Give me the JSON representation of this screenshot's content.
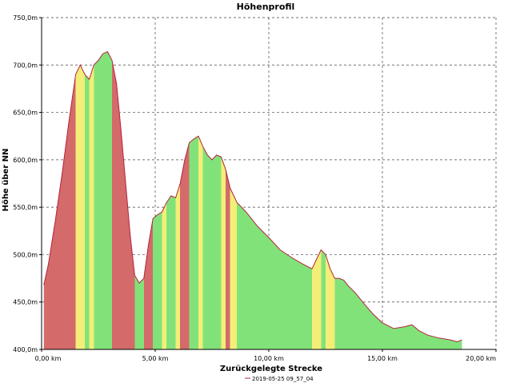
{
  "chart_data": {
    "type": "area",
    "title": "Höhenprofil",
    "xlabel": "Zurückgelegte Strecke",
    "ylabel": "Höhe über NN",
    "legend": {
      "label": "2019-05-25 09_57_04",
      "placement": "bottom-center"
    },
    "xlim": [
      0,
      20
    ],
    "ylim": [
      400,
      750
    ],
    "grid": true,
    "x_ticks": [
      0,
      5,
      10,
      15,
      20
    ],
    "x_tick_labels": [
      "0,00 km",
      "5,00 km",
      "10,00 km",
      "15,00 km",
      "20,00 km"
    ],
    "y_ticks": [
      400,
      450,
      500,
      550,
      600,
      650,
      700,
      750
    ],
    "y_tick_labels": [
      "400,0m",
      "450,0m",
      "500,0m",
      "550,0m",
      "600,0m",
      "650,0m",
      "700,0m",
      "750,0m"
    ],
    "series": [
      {
        "x": [
          0.1,
          0.3,
          0.6,
          0.9,
          1.2,
          1.5,
          1.7,
          1.9,
          2.1,
          2.3,
          2.5,
          2.7,
          2.9,
          3.1,
          3.3,
          3.5,
          3.7,
          3.9,
          4.1,
          4.3,
          4.5,
          4.7,
          4.9,
          5.1,
          5.3,
          5.5,
          5.7,
          5.9,
          6.1,
          6.3,
          6.5,
          6.7,
          6.9,
          7.1,
          7.3,
          7.5,
          7.7,
          7.9,
          8.1,
          8.3,
          8.6,
          9.0,
          9.5,
          10.0,
          10.5,
          11.0,
          11.5,
          11.9,
          12.1,
          12.3,
          12.5,
          12.7,
          12.9,
          13.1,
          13.3,
          13.5,
          13.8,
          14.2,
          14.6,
          15.0,
          15.5,
          16.0,
          16.3,
          16.6,
          17.0,
          17.5,
          18.0,
          18.3,
          18.5
        ],
        "y": [
          468,
          490,
          535,
          585,
          640,
          690,
          700,
          690,
          685,
          700,
          705,
          712,
          714,
          705,
          680,
          630,
          575,
          520,
          478,
          470,
          475,
          510,
          538,
          542,
          545,
          555,
          562,
          560,
          575,
          600,
          618,
          622,
          625,
          614,
          605,
          600,
          605,
          603,
          590,
          570,
          555,
          545,
          530,
          518,
          505,
          497,
          490,
          485,
          495,
          505,
          500,
          485,
          475,
          475,
          473,
          467,
          460,
          448,
          437,
          428,
          422,
          424,
          426,
          420,
          415,
          412,
          410,
          408,
          410
        ]
      }
    ],
    "gradient_colors": {
      "steep": "#d46a6a",
      "moderate": "#f3ee78",
      "flat": "#82e27a",
      "line": "#b2243c",
      "grid": "#444444"
    }
  }
}
